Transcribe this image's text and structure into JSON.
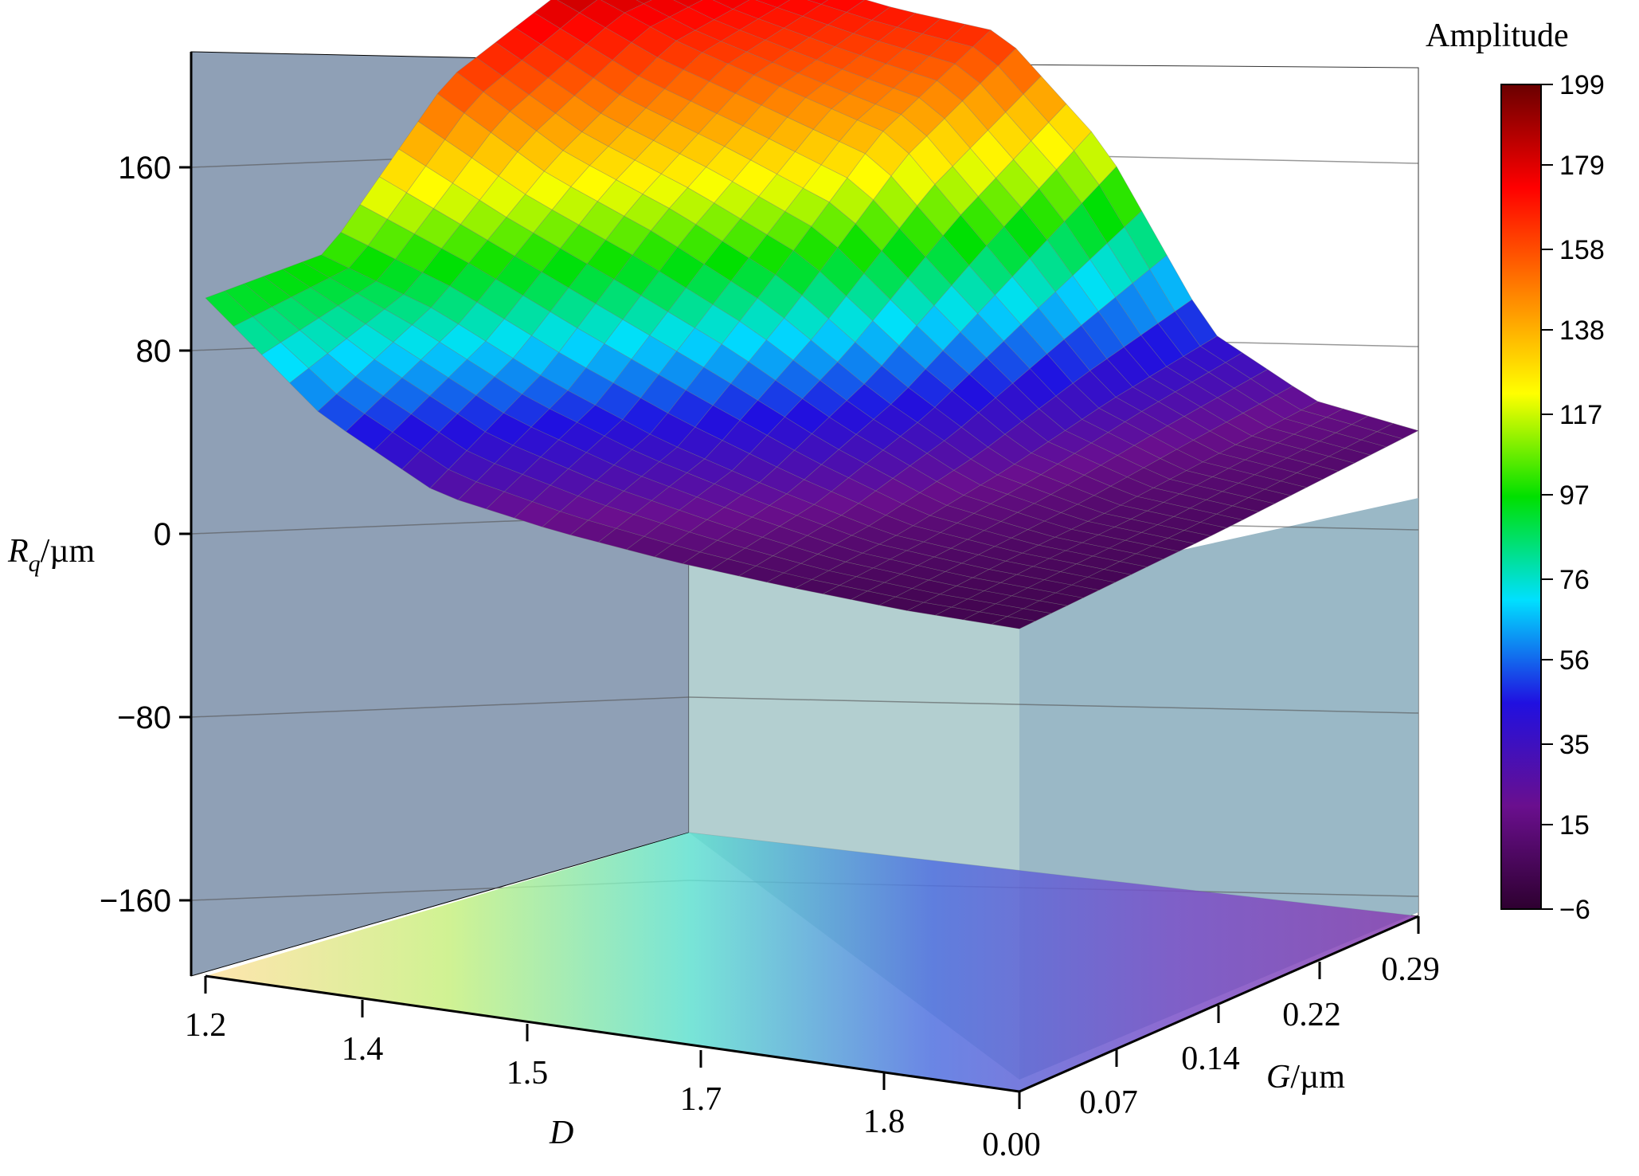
{
  "chart_data": {
    "type": "surface3d",
    "title": "",
    "x_axis": {
      "label_main": "D",
      "label_unit": "",
      "ticks": [
        "1.2",
        "1.4",
        "1.5",
        "1.7",
        "1.8"
      ],
      "range": [
        1.2,
        1.9
      ]
    },
    "y_axis": {
      "label_main": "G",
      "label_unit": "/µm",
      "ticks": [
        "0.00",
        "0.07",
        "0.14",
        "0.22",
        "0.29"
      ],
      "range": [
        0.0,
        0.29
      ]
    },
    "z_axis": {
      "label_main": "R",
      "label_sub": "q",
      "label_unit": "/µm",
      "ticks": [
        "160",
        "80",
        "0",
        "−80",
        "−160"
      ],
      "tick_values": [
        160,
        80,
        0,
        -80,
        -160
      ],
      "range": [
        -200,
        200
      ]
    },
    "colorbar": {
      "title": "Amplitude",
      "ticks": [
        "199",
        "179",
        "158",
        "138",
        "117",
        "97",
        "76",
        "56",
        "35",
        "15",
        "−6"
      ],
      "tick_values": [
        199,
        179,
        158,
        138,
        117,
        97,
        76,
        56,
        35,
        15,
        -6
      ],
      "range": [
        -6,
        199
      ],
      "colormap": [
        "#2e0030",
        "#6a0f8e",
        "#2010e0",
        "#00e0ff",
        "#00e000",
        "#ffff00",
        "#ff8000",
        "#ff0000",
        "#6a0000"
      ]
    },
    "surface": {
      "D": [
        1.2,
        1.3,
        1.4,
        1.5,
        1.6,
        1.7,
        1.8,
        1.9
      ],
      "G": [
        0.0,
        0.07,
        0.14,
        0.22,
        0.29
      ],
      "Rq": [
        [
          96,
          100,
          160,
          185,
          190
        ],
        [
          52,
          84,
          130,
          165,
          178
        ],
        [
          25,
          60,
          110,
          150,
          170
        ],
        [
          16,
          40,
          85,
          135,
          165
        ],
        [
          10,
          25,
          50,
          85,
          120
        ],
        [
          6,
          12,
          22,
          35,
          45
        ],
        [
          3,
          7,
          10,
          15,
          20
        ],
        [
          2,
          4,
          6,
          9,
          12
        ]
      ]
    },
    "projection": "contour map projected on the bottom plane",
    "grid": true
  }
}
